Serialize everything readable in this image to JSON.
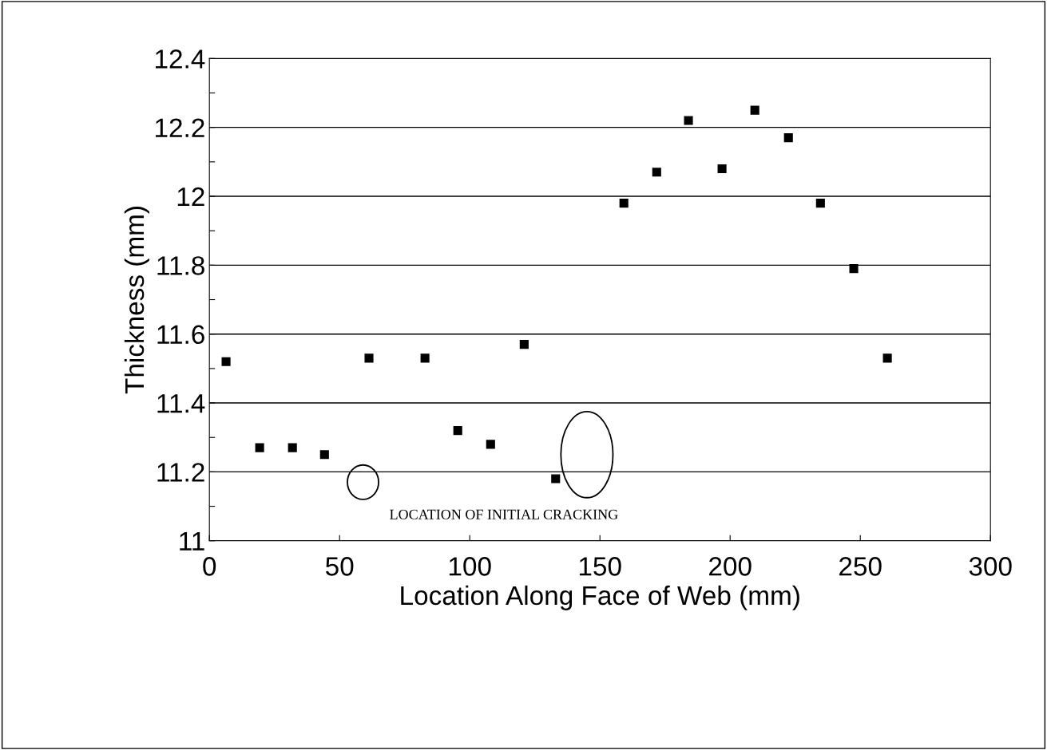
{
  "chart_data": {
    "type": "scatter",
    "xlabel": "Location Along Face of Web (mm)",
    "ylabel": "Thickness (mm)",
    "x": [
      6.4,
      19.3,
      31.9,
      44.2,
      61.3,
      82.8,
      95.4,
      108,
      120.9,
      133,
      159.2,
      171.8,
      184,
      196.9,
      209.5,
      222.4,
      234.7,
      247.5,
      260.4
    ],
    "series": [
      {
        "color": "#000000",
        "values": [
          11.52,
          11.27,
          11.27,
          11.25,
          11.53,
          11.53,
          11.32,
          11.28,
          11.57,
          11.18,
          11.98,
          12.07,
          12.22,
          12.08,
          12.25,
          12.17,
          11.98,
          11.79,
          11.53
        ]
      }
    ],
    "xlim": [
      0,
      300
    ],
    "xticks": [
      0,
      50,
      100,
      150,
      200,
      250,
      300
    ],
    "ylim": [
      11,
      12.4
    ],
    "yticks": [
      11,
      {
        "value": 11.1,
        "label": null
      },
      11.2,
      {
        "value": 11.3,
        "label": null
      },
      11.4,
      {
        "value": 11.5,
        "label": null
      },
      11.6,
      {
        "value": 11.7,
        "label": null
      },
      11.8,
      {
        "value": 11.9,
        "label": null
      },
      12,
      {
        "value": 12.1,
        "label": null
      },
      12.2,
      {
        "value": 12.3,
        "label": null
      },
      12.4
    ],
    "grid": "y",
    "marker": "square",
    "legend": false,
    "annotations": [
      "LOCATION OF INITIAL CRACKING"
    ]
  }
}
